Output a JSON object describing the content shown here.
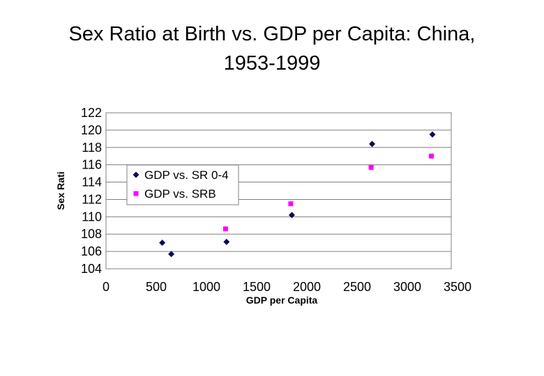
{
  "page": {
    "title_line1": "Sex Ratio at Birth vs. GDP per Capita: China,",
    "title_line2": "1953-1999"
  },
  "chart_data": {
    "type": "scatter",
    "title": "Sex Ratio at Birth vs. GDP per Capita: China, 1953-1999",
    "xlabel": "GDP per Capita",
    "ylabel": "Sex Rati",
    "xlim": [
      0,
      3500
    ],
    "ylim": [
      104,
      122
    ],
    "x_ticks": [
      0,
      500,
      1000,
      1500,
      2000,
      2500,
      3000,
      3500
    ],
    "y_ticks": [
      104,
      106,
      108,
      110,
      112,
      114,
      116,
      118,
      120,
      122
    ],
    "grid": "horizontal",
    "legend_position": "left",
    "series": [
      {
        "name": "GDP vs. SR 0-4",
        "marker": "diamond",
        "color": "#0a0a5a",
        "points": [
          {
            "x": 560,
            "y": 107.0
          },
          {
            "x": 650,
            "y": 105.7
          },
          {
            "x": 1200,
            "y": 107.1
          },
          {
            "x": 1850,
            "y": 110.2
          },
          {
            "x": 2650,
            "y": 118.4
          },
          {
            "x": 3250,
            "y": 119.5
          }
        ]
      },
      {
        "name": "GDP vs. SRB",
        "marker": "square",
        "color": "#ff00ff",
        "points": [
          {
            "x": 1190,
            "y": 108.6
          },
          {
            "x": 1840,
            "y": 111.5
          },
          {
            "x": 2640,
            "y": 115.7
          },
          {
            "x": 3240,
            "y": 117.0
          }
        ]
      }
    ]
  }
}
